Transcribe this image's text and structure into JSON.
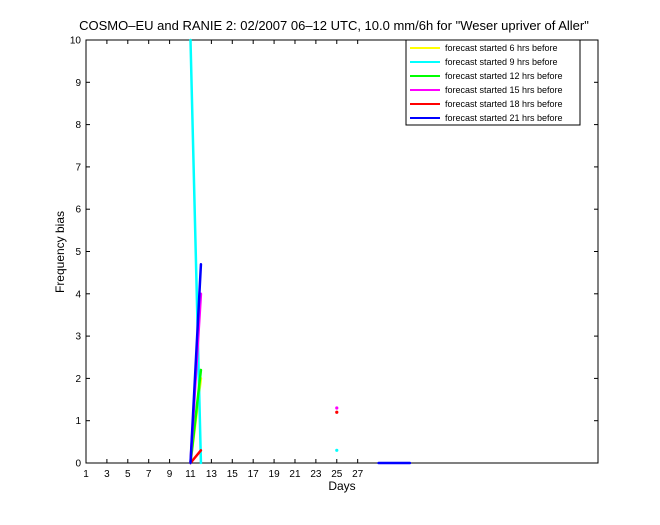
{
  "chart_data": {
    "type": "line",
    "title": "COSMO–EU and RANIE 2: 02/2007 06–12 UTC, 10.0 mm/6h for \"Weser upriver of Aller\"",
    "xlabel": "Days",
    "ylabel": "Frequency bias",
    "xlim": [
      1,
      50
    ],
    "ylim": [
      0,
      10
    ],
    "x_ticks": [
      1,
      3,
      5,
      7,
      9,
      11,
      13,
      15,
      17,
      19,
      21,
      23,
      25,
      27
    ],
    "y_ticks": [
      0,
      1,
      2,
      3,
      4,
      5,
      6,
      7,
      8,
      9,
      10
    ],
    "grid": false,
    "legend_position": "top-right",
    "series": [
      {
        "name": "forecast started 6 hrs before",
        "color": "#ffff00",
        "x": [
          11,
          12
        ],
        "y": [
          0,
          2.0
        ]
      },
      {
        "name": "forecast started 9 hrs before",
        "color": "#00ffff",
        "x": [
          11,
          12,
          25
        ],
        "y": [
          10,
          0,
          0.3
        ]
      },
      {
        "name": "forecast started 12 hrs before",
        "color": "#00ff00",
        "x": [
          11,
          12
        ],
        "y": [
          0,
          2.2
        ]
      },
      {
        "name": "forecast started 15 hrs before",
        "color": "#ff00ff",
        "x": [
          11,
          12,
          25
        ],
        "y": [
          0,
          4.0,
          1.3
        ]
      },
      {
        "name": "forecast started 18 hrs before",
        "color": "#ff0000",
        "x": [
          11,
          12,
          25
        ],
        "y": [
          0,
          0.3,
          1.2
        ]
      },
      {
        "name": "forecast started 21 hrs before",
        "color": "#0000ff",
        "x": [
          11,
          12,
          29,
          32
        ],
        "y": [
          0,
          4.7,
          0,
          0
        ]
      }
    ]
  }
}
